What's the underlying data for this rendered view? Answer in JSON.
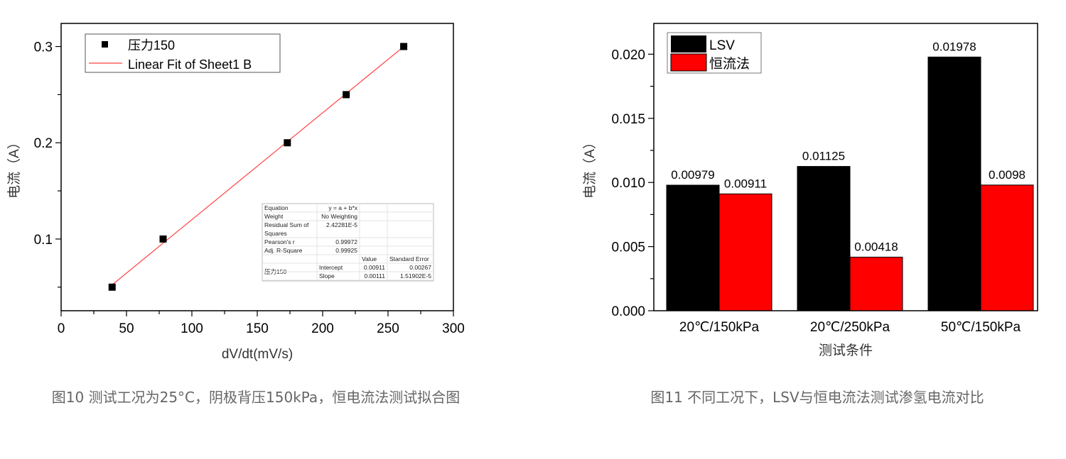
{
  "chart_data": [
    {
      "type": "scatter",
      "xlabel": "dV/dt(mV/s)",
      "ylabel": "电流（A）",
      "xlim": [
        0,
        300
      ],
      "ylim": [
        0.0255,
        0.324
      ],
      "xticks": [
        0,
        50,
        100,
        150,
        200,
        250,
        300
      ],
      "yticks": [
        0.1,
        0.2,
        0.3
      ],
      "xtick_labels": [
        "0",
        "50",
        "100",
        "150",
        "200",
        "250",
        "300"
      ],
      "ytick_labels": [
        "0.1",
        "0.2",
        "0.3"
      ],
      "grid": false,
      "legend_position": "top-left",
      "series": [
        {
          "name": "压力150",
          "kind": "scatter",
          "color": "#000000",
          "x": [
            39,
            78,
            173,
            218,
            262
          ],
          "y": [
            0.05,
            0.1,
            0.2,
            0.25,
            0.3
          ]
        },
        {
          "name": "Linear Fit of Sheet1 B",
          "kind": "line",
          "color": "#ff4040",
          "intercept": 0.00911,
          "slope": 0.00111,
          "x_range": [
            39,
            262
          ]
        }
      ],
      "stats_table": {
        "rows": [
          [
            "Equation",
            "y = a + b*x",
            "",
            ""
          ],
          [
            "Weight",
            "No Weighting",
            "",
            ""
          ],
          [
            "Residual Sum of Squares",
            "2.42281E-5",
            "",
            ""
          ],
          [
            "Pearson's r",
            "0.99972",
            "",
            ""
          ],
          [
            "Adj. R-Square",
            "0.99925",
            "",
            ""
          ],
          [
            "",
            "",
            "Value",
            "Standard Error"
          ],
          [
            "压力150",
            "Intercept",
            "0.00911",
            "0.00267"
          ],
          [
            "",
            "Slope",
            "0.00111",
            "1.51902E-5"
          ]
        ]
      }
    },
    {
      "type": "bar",
      "xlabel": "测试条件",
      "ylabel": "电流（A）",
      "ylim": [
        0,
        0.0224
      ],
      "yticks": [
        0,
        0.005,
        0.01,
        0.015,
        0.02
      ],
      "ytick_labels": [
        "0.000",
        "0.005",
        "0.010",
        "0.015",
        "0.020"
      ],
      "categories": [
        "20℃/150kPa",
        "20℃/250kPa",
        "50℃/150kPa"
      ],
      "grid": false,
      "legend_position": "top-left",
      "series": [
        {
          "name": "LSV",
          "color": "#000000",
          "values": [
            0.00979,
            0.01125,
            0.01978
          ],
          "labels": [
            "0.00979",
            "0.01125",
            "0.01978"
          ]
        },
        {
          "name": "恒流法",
          "color": "#ff0000",
          "values": [
            0.00911,
            0.00418,
            0.0098
          ],
          "labels": [
            "0.00911",
            "0.00418",
            "0.0098"
          ]
        }
      ]
    }
  ],
  "captions": {
    "fig10": "图10 测试工况为25°C，阴极背压150kPa，恒电流法测试拟合图",
    "fig11": "图11 不同工况下，LSV与恒电流法测试渗氢电流对比"
  }
}
